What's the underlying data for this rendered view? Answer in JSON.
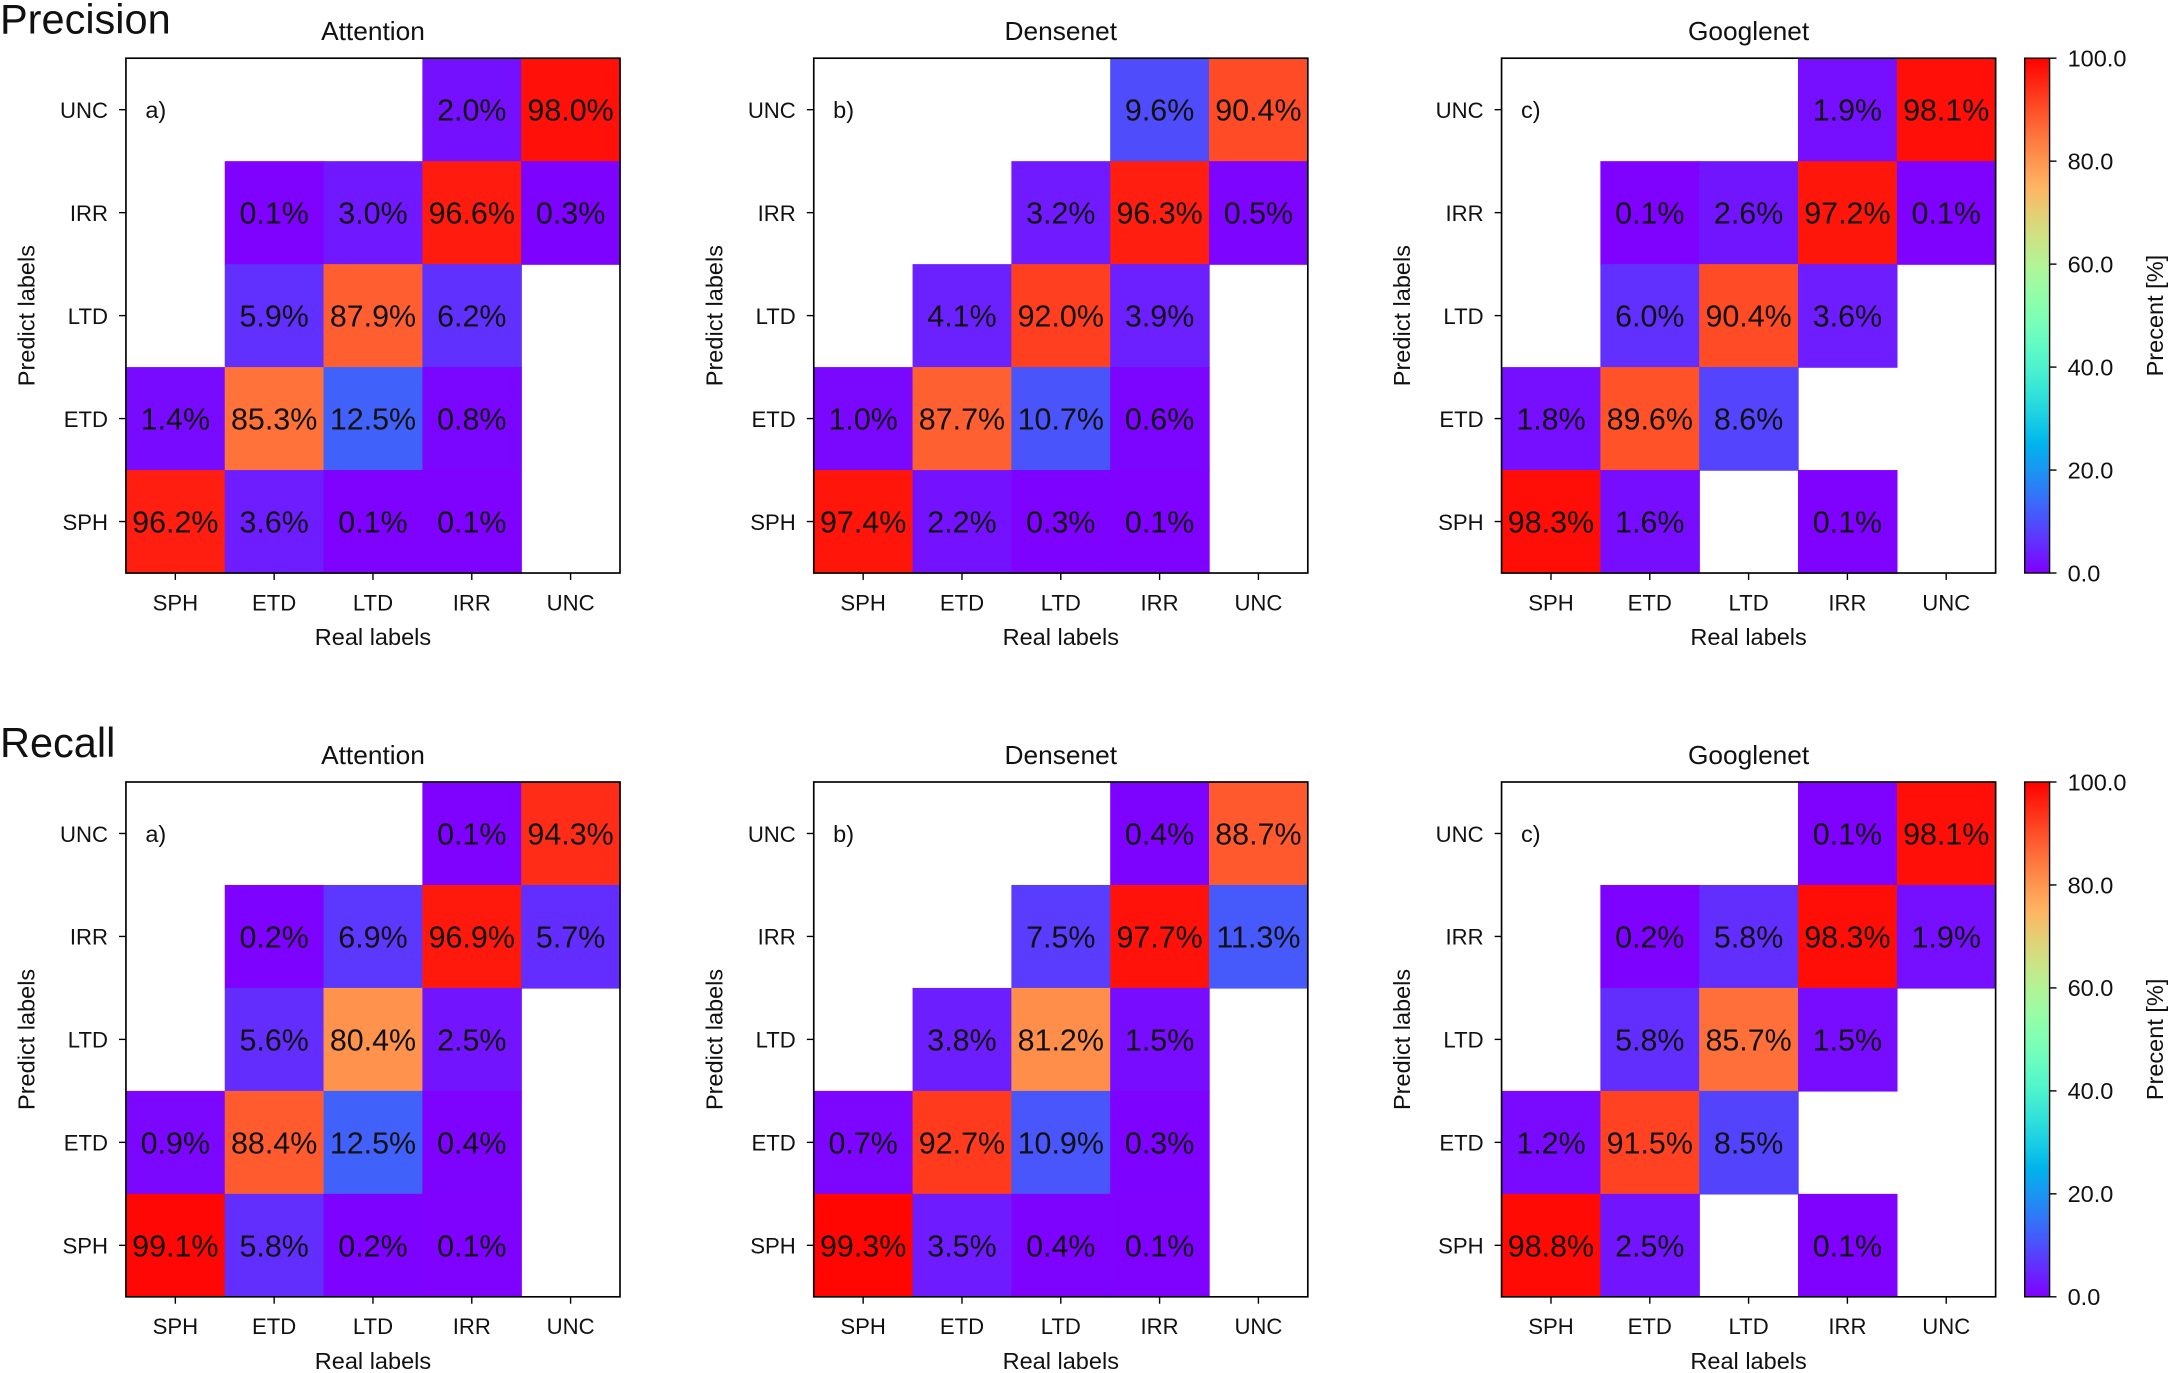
{
  "chart_data": {
    "type": "heatmap",
    "colormap": "rainbow",
    "value_range": [
      0,
      100
    ],
    "x_categories": [
      "SPH",
      "ETD",
      "LTD",
      "IRR",
      "UNC"
    ],
    "y_categories": [
      "UNC",
      "IRR",
      "LTD",
      "ETD",
      "SPH"
    ],
    "xlabel": "Real labels",
    "ylabel": "Predict labels",
    "value_suffix": "%",
    "colorbar": {
      "label": "Precent [%]",
      "ticks": [
        "0.0",
        "20.0",
        "40.0",
        "60.0",
        "80.0",
        "100.0"
      ],
      "range": [
        0,
        100
      ]
    },
    "sections": [
      {
        "title": "Precision",
        "panels": [
          {
            "title": "Attention",
            "letter": "a)",
            "matrix": [
              [
                null,
                null,
                null,
                2.0,
                98.0
              ],
              [
                null,
                0.1,
                3.0,
                96.6,
                0.3
              ],
              [
                null,
                5.9,
                87.9,
                6.2,
                null
              ],
              [
                1.4,
                85.3,
                12.5,
                0.8,
                null
              ],
              [
                96.2,
                3.6,
                0.1,
                0.1,
                null
              ]
            ]
          },
          {
            "title": "Densenet",
            "letter": "b)",
            "matrix": [
              [
                null,
                null,
                null,
                9.6,
                90.4
              ],
              [
                null,
                null,
                3.2,
                96.3,
                0.5
              ],
              [
                null,
                4.1,
                92.0,
                3.9,
                null
              ],
              [
                1.0,
                87.7,
                10.7,
                0.6,
                null
              ],
              [
                97.4,
                2.2,
                0.3,
                0.1,
                null
              ]
            ]
          },
          {
            "title": "Googlenet",
            "letter": "c)",
            "matrix": [
              [
                null,
                null,
                null,
                1.9,
                98.1
              ],
              [
                null,
                0.1,
                2.6,
                97.2,
                0.1
              ],
              [
                null,
                6.0,
                90.4,
                3.6,
                null
              ],
              [
                1.8,
                89.6,
                8.6,
                null,
                null
              ],
              [
                98.3,
                1.6,
                null,
                0.1,
                null
              ]
            ]
          }
        ]
      },
      {
        "title": "Recall",
        "panels": [
          {
            "title": "Attention",
            "letter": "a)",
            "matrix": [
              [
                null,
                null,
                null,
                0.1,
                94.3
              ],
              [
                null,
                0.2,
                6.9,
                96.9,
                5.7
              ],
              [
                null,
                5.6,
                80.4,
                2.5,
                null
              ],
              [
                0.9,
                88.4,
                12.5,
                0.4,
                null
              ],
              [
                99.1,
                5.8,
                0.2,
                0.1,
                null
              ]
            ]
          },
          {
            "title": "Densenet",
            "letter": "b)",
            "matrix": [
              [
                null,
                null,
                null,
                0.4,
                88.7
              ],
              [
                null,
                null,
                7.5,
                97.7,
                11.3
              ],
              [
                null,
                3.8,
                81.2,
                1.5,
                null
              ],
              [
                0.7,
                92.7,
                10.9,
                0.3,
                null
              ],
              [
                99.3,
                3.5,
                0.4,
                0.1,
                null
              ]
            ]
          },
          {
            "title": "Googlenet",
            "letter": "c)",
            "matrix": [
              [
                null,
                null,
                null,
                0.1,
                98.1
              ],
              [
                null,
                0.2,
                5.8,
                98.3,
                1.9
              ],
              [
                null,
                5.8,
                85.7,
                1.5,
                null
              ],
              [
                1.2,
                91.5,
                8.5,
                null,
                null
              ],
              [
                98.8,
                2.5,
                null,
                0.1,
                null
              ]
            ]
          }
        ]
      }
    ]
  }
}
